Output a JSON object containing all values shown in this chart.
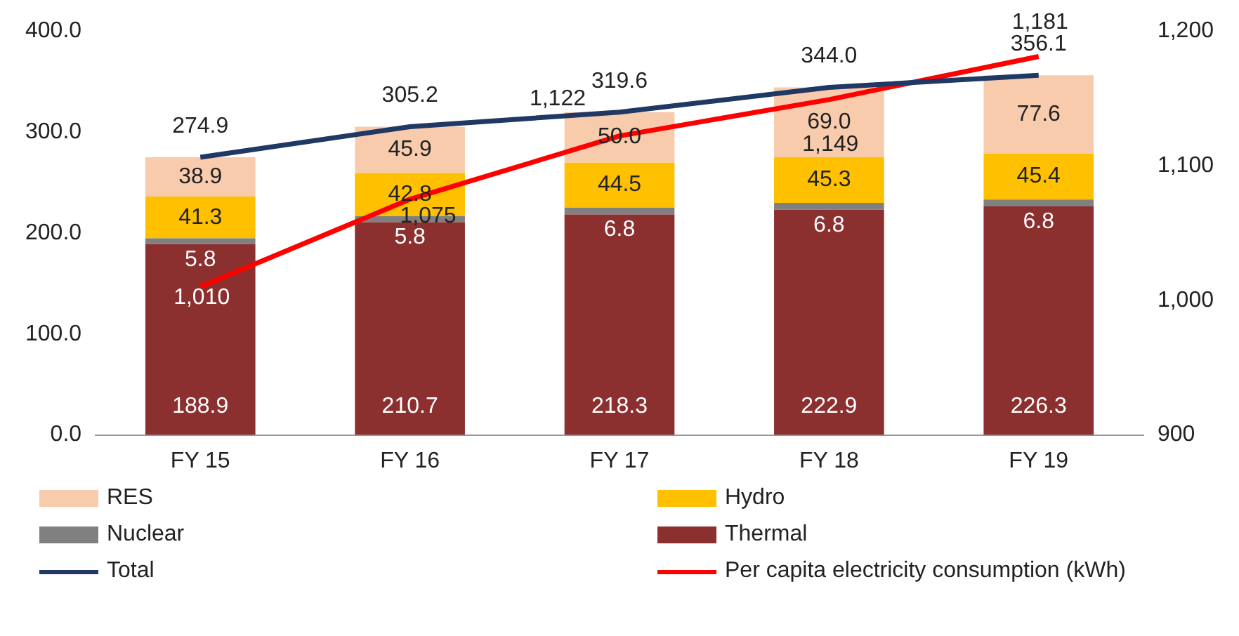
{
  "chart_data": {
    "type": "bar",
    "stacked": true,
    "categories": [
      "FY 15",
      "FY 16",
      "FY 17",
      "FY 18",
      "FY 19"
    ],
    "series": [
      {
        "name": "Thermal",
        "color": "#8b2f2f",
        "values": [
          188.9,
          210.7,
          218.3,
          222.9,
          226.3
        ],
        "value_labels": [
          "188.9",
          "210.7",
          "218.3",
          "222.9",
          "226.3"
        ]
      },
      {
        "name": "Nuclear",
        "color": "#808080",
        "values": [
          5.8,
          5.8,
          6.8,
          6.8,
          6.8
        ],
        "value_labels": [
          "5.8",
          "5.8",
          "6.8",
          "6.8",
          "6.8"
        ]
      },
      {
        "name": "Hydro",
        "color": "#ffc000",
        "values": [
          41.3,
          42.8,
          44.5,
          45.3,
          45.4
        ],
        "value_labels": [
          "41.3",
          "42.8",
          "44.5",
          "45.3",
          "45.4"
        ]
      },
      {
        "name": "RES",
        "color": "#f8cbad",
        "values": [
          38.9,
          45.9,
          50.0,
          69.0,
          77.6
        ],
        "value_labels": [
          "38.9",
          "45.9",
          "50.0",
          "69.0",
          "77.6"
        ]
      },
      {
        "name": "Total",
        "type": "line",
        "color": "#1f3864",
        "values": [
          274.9,
          305.2,
          319.6,
          344.0,
          356.1
        ],
        "value_labels": [
          "274.9",
          "305.2",
          "319.6",
          "344.0",
          "356.1"
        ]
      },
      {
        "name": "Per capita electricity consumption (kWh)",
        "type": "line",
        "axis": "y2",
        "color": "#ff0000",
        "values": [
          1010,
          1075,
          1122,
          1149,
          1181
        ],
        "value_labels": [
          "1,010",
          "1,075",
          "1,122",
          "1,149",
          "1,181"
        ]
      }
    ],
    "ylim": [
      0,
      400
    ],
    "yticks": [
      {
        "value": 0,
        "label": "0.0"
      },
      {
        "value": 100,
        "label": "100.0"
      },
      {
        "value": 200,
        "label": "200.0"
      },
      {
        "value": 300,
        "label": "300.0"
      },
      {
        "value": 400,
        "label": "400.0"
      }
    ],
    "y2lim": [
      900,
      1200
    ],
    "y2ticks": [
      {
        "value": 900,
        "label": "900"
      },
      {
        "value": 1000,
        "label": "1,000"
      },
      {
        "value": 1100,
        "label": "1,100"
      },
      {
        "value": 1200,
        "label": "1,200"
      }
    ],
    "legend": "bottom",
    "grid": false,
    "marker": "none"
  }
}
